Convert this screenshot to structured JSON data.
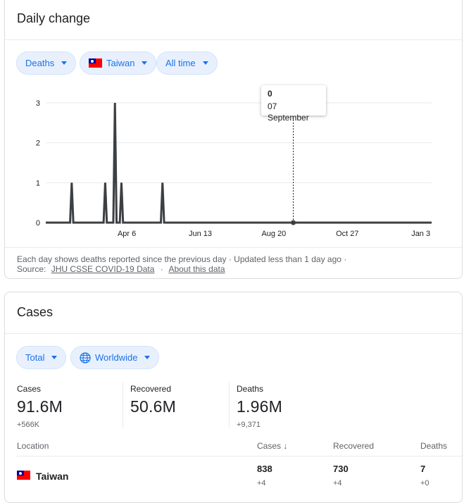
{
  "daily_card": {
    "title": "Daily change",
    "filters": {
      "metric": "Deaths",
      "country": "Taiwan",
      "range": "All time"
    },
    "tooltip": {
      "value": "0",
      "date": "07 September"
    },
    "footer": {
      "line1": "Each day shows deaths reported since the previous day · Updated less than 1 day ago ·",
      "source_prefix": "Source:",
      "source_link": "JHU CSSE COVID-19 Data",
      "separator": "·",
      "about_link": "About this data"
    }
  },
  "chart_data": {
    "type": "line",
    "title": "",
    "xlabel": "",
    "ylabel": "",
    "y_ticks": [
      0,
      1,
      2,
      3
    ],
    "ylim": [
      0,
      3
    ],
    "x_tick_labels": [
      "Apr 6",
      "Jun 13",
      "Aug 20",
      "Oct 27",
      "Jan 3"
    ],
    "series": [
      {
        "points": [
          {
            "x": "Jan 22",
            "y": 0
          },
          {
            "x": "Feb 15",
            "y": 1
          },
          {
            "x": "Mar 17",
            "y": 1
          },
          {
            "x": "Mar 26",
            "y": 3
          },
          {
            "x": "Apr 1",
            "y": 1
          },
          {
            "x": "May 9",
            "y": 1
          },
          {
            "x": "Jan 13",
            "y": 0
          }
        ]
      }
    ],
    "highlight": {
      "x": "07 September",
      "y": 0
    },
    "grid": true,
    "color": "#3c4043"
  },
  "cases_card": {
    "title": "Cases",
    "filters": {
      "type": "Total",
      "region": "Worldwide"
    },
    "stats": [
      {
        "label": "Cases",
        "value": "91.6M",
        "delta": "+566K"
      },
      {
        "label": "Recovered",
        "value": "50.6M",
        "delta": ""
      },
      {
        "label": "Deaths",
        "value": "1.96M",
        "delta": "+9,371"
      }
    ],
    "table": {
      "headers": {
        "location": "Location",
        "cases": "Cases",
        "recovered": "Recovered",
        "deaths": "Deaths"
      },
      "sort_indicator": "↓",
      "rows": [
        {
          "location": "Taiwan",
          "cases": "838",
          "cases_delta": "+4",
          "recovered": "730",
          "recovered_delta": "+4",
          "deaths": "7",
          "deaths_delta": "+0"
        }
      ]
    }
  },
  "colors": {
    "accent": "#1a73e8",
    "chip_bg": "#e8f0fe",
    "chart_line": "#3c4043"
  }
}
